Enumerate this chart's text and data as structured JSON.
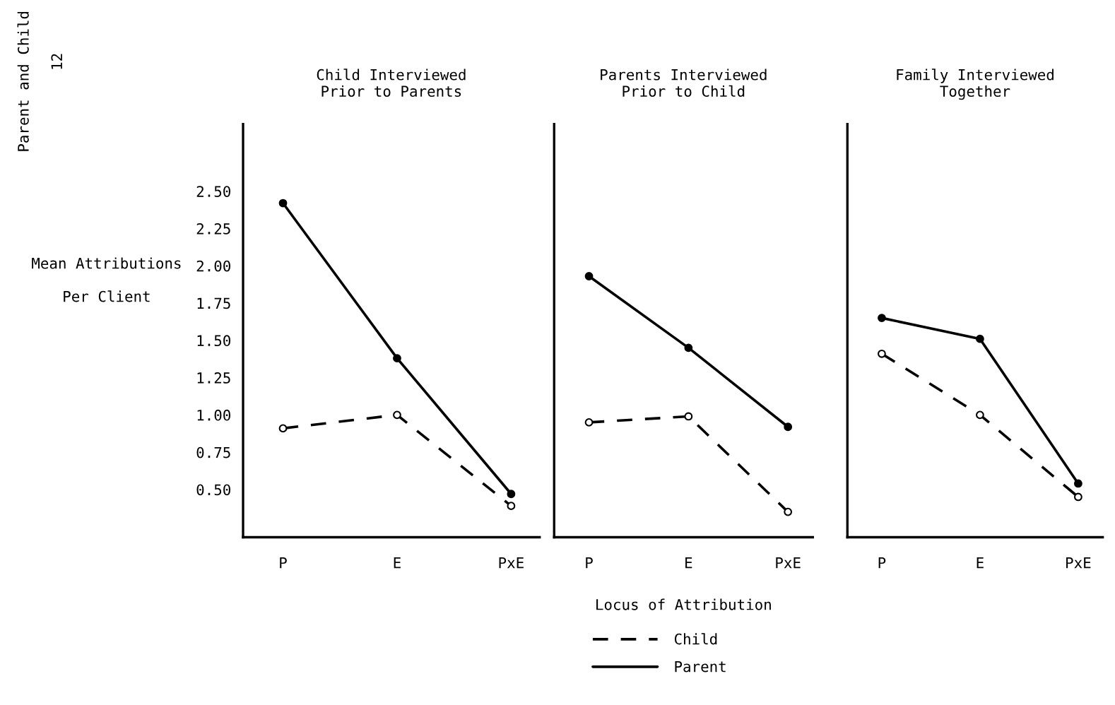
{
  "chart_data": [
    {
      "type": "line",
      "title": "Child Interviewed\nPrior to Parents",
      "ylabel": "Mean Attributions\n\nPer Client",
      "annotations": [
        "Parent and Child",
        "12"
      ],
      "categories": [
        "P",
        "E",
        "PxE"
      ],
      "ylim": [
        0.18,
        2.95
      ],
      "yticks": [
        {
          "value": 0.5,
          "label": "0.50"
        },
        {
          "value": 0.75,
          "label": "0.75"
        },
        {
          "value": 1.0,
          "label": "1.00"
        },
        {
          "value": 1.25,
          "label": "1.25"
        },
        {
          "value": 1.5,
          "label": "1.50"
        },
        {
          "value": 1.75,
          "label": "1.75"
        },
        {
          "value": 2.0,
          "label": "2.00"
        },
        {
          "value": 2.25,
          "label": "2.25"
        },
        {
          "value": 2.5,
          "label": "2.50"
        }
      ],
      "grid": false,
      "series": [
        {
          "color": "#000000",
          "marker": "circle",
          "line_style": "dashed",
          "values": [
            0.91,
            1.0,
            0.39
          ]
        },
        {
          "color": "#000000",
          "marker": "circle",
          "line_style": "solid",
          "values": [
            2.42,
            1.38,
            0.47
          ]
        }
      ]
    },
    {
      "type": "line",
      "title": "Parents Interviewed\nPrior to Child",
      "xlabel": "Locus of Attribution",
      "categories": [
        "P",
        "E",
        "PxE"
      ],
      "ylim": [
        0.18,
        2.95
      ],
      "tick_labels": "x",
      "grid": false,
      "legend": "bottom",
      "series": [
        {
          "name": "Child",
          "color": "#000000",
          "marker": "circle",
          "line_style": "dashed",
          "values": [
            0.95,
            0.99,
            0.35
          ]
        },
        {
          "name": "Parent",
          "color": "#000000",
          "marker": "circle",
          "line_style": "solid",
          "values": [
            1.93,
            1.45,
            0.92
          ]
        }
      ]
    },
    {
      "type": "line",
      "title": "Family Interviewed\nTogether",
      "categories": [
        "P",
        "E",
        "PxE"
      ],
      "ylim": [
        0.18,
        2.95
      ],
      "tick_labels": "x",
      "grid": false,
      "series": [
        {
          "color": "#000000",
          "marker": "circle",
          "line_style": "dashed",
          "values": [
            1.41,
            1.0,
            0.45
          ]
        },
        {
          "color": "#000000",
          "marker": "circle",
          "line_style": "solid",
          "values": [
            1.65,
            1.51,
            0.54
          ]
        }
      ]
    }
  ]
}
